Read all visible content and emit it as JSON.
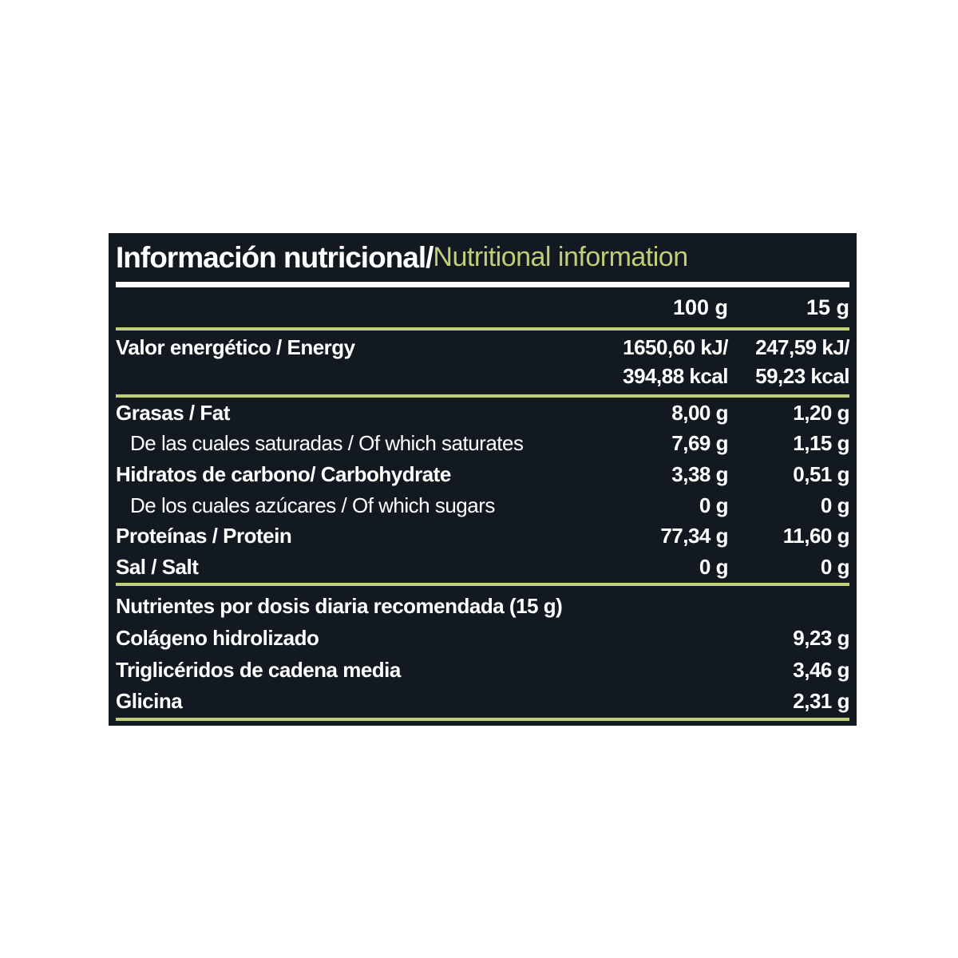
{
  "colors": {
    "accent_olive": "#bfce78",
    "panel_background": "#131920",
    "text_white": "#ffffff",
    "page_background": "#ffffff"
  },
  "title": {
    "es": "Información nutricional/",
    "en": "Nutritional information"
  },
  "column_headers": {
    "per_100g": "100 g",
    "per_15g": "15 g"
  },
  "energy_row": {
    "label": "Valor energético / Energy",
    "per_100g_line1": "1650,60 kJ/",
    "per_100g_line2": "394,88 kcal",
    "per_15g_line1": "247,59 kJ/",
    "per_15g_line2": "59,23 kcal"
  },
  "nutrient_rows": [
    {
      "label": "Grasas / Fat",
      "per_100g": "8,00 g",
      "per_15g": "1,20 g",
      "sub": false
    },
    {
      "label": "De las cuales saturadas / Of which saturates",
      "per_100g": "7,69 g",
      "per_15g": "1,15 g",
      "sub": true
    },
    {
      "label": "Hidratos de carbono/ Carbohydrate",
      "per_100g": "3,38 g",
      "per_15g": "0,51 g",
      "sub": false
    },
    {
      "label": "De los cuales azúcares / Of which sugars",
      "per_100g": "0 g",
      "per_15g": "0 g",
      "sub": true
    },
    {
      "label": "Proteínas / Protein",
      "per_100g": "77,34 g",
      "per_15g": "11,60 g",
      "sub": false
    },
    {
      "label": "Sal / Salt",
      "per_100g": "0 g",
      "per_15g": "0 g",
      "sub": false
    }
  ],
  "daily_dose_section": {
    "header": "Nutrientes por dosis diaria recomendada (15 g)",
    "rows": [
      {
        "label": "Colágeno hidrolizado",
        "value": "9,23 g"
      },
      {
        "label": "Triglicéridos de cadena media",
        "value": "3,46 g"
      },
      {
        "label": "Glicina",
        "value": "2,31 g"
      }
    ]
  }
}
